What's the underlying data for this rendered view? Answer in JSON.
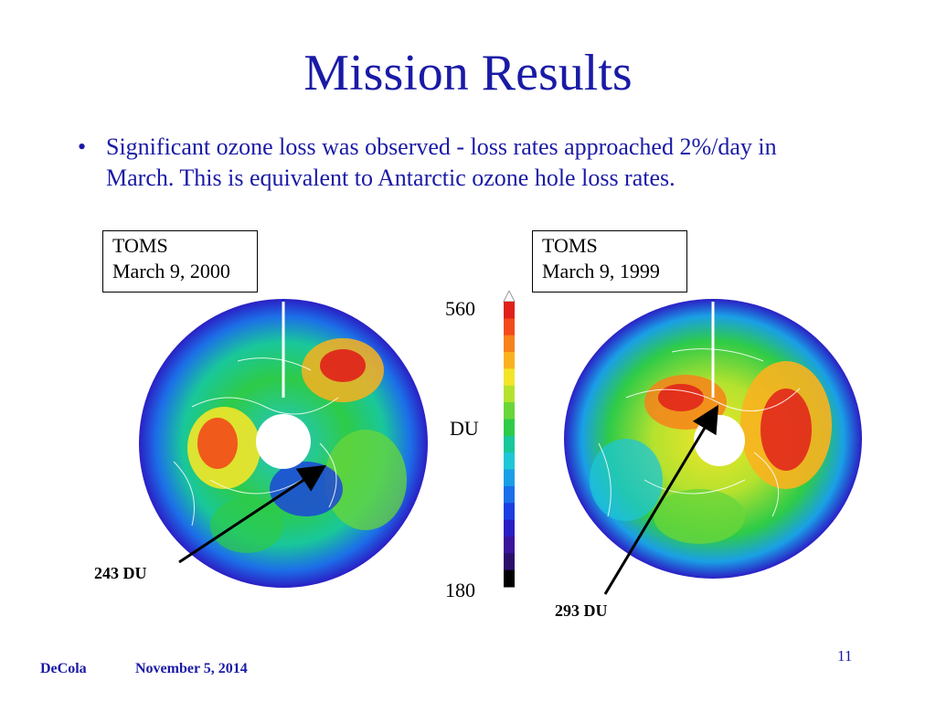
{
  "slide": {
    "title": "Mission Results",
    "bullet": "Significant ozone loss was observed - loss rates approached 2%/day in March.  This is equivalent to Antarctic ozone hole loss rates.",
    "bullet_glyph": "•"
  },
  "figures": {
    "left_label": {
      "line1": "TOMS",
      "line2": "March 9, 2000"
    },
    "right_label": {
      "line1": "TOMS",
      "line2": "March 9, 1999"
    },
    "left_pointer": "243 DU",
    "right_pointer": "293 DU"
  },
  "color_scale": {
    "max_label": "560",
    "unit_label": "DU",
    "min_label": "180",
    "colors": [
      "#e0201b",
      "#f24a1a",
      "#f7821a",
      "#f9b21f",
      "#f2e529",
      "#b5e22e",
      "#69d63a",
      "#2ecb48",
      "#19c79a",
      "#1fc6d6",
      "#1a9fe6",
      "#1c6fe8",
      "#1c3fe0",
      "#2a1fc4",
      "#3a149b",
      "#2b0f6b",
      "#000000"
    ]
  },
  "footer": {
    "author": "DeCola",
    "date": "November 5, 2014",
    "page": "11"
  },
  "colors": {
    "text_blue": "#1a1aa6"
  }
}
